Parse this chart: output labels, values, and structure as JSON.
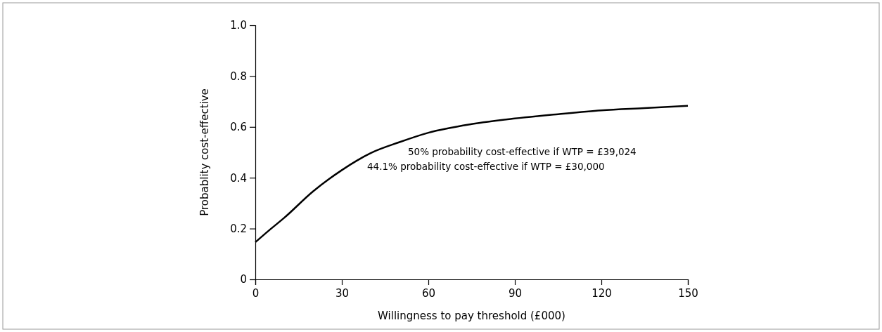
{
  "chart_data": {
    "type": "line",
    "xlabel": "Willingness to pay threshold (£000)",
    "ylabel": "Probablity cost-effective",
    "x": [
      0,
      5,
      10,
      20,
      30,
      40,
      50,
      60,
      75,
      90,
      105,
      120,
      135,
      150
    ],
    "series": [
      {
        "color": "#000000",
        "values": [
          0.146,
          0.195,
          0.242,
          0.346,
          0.43,
          0.497,
          0.54,
          0.577,
          0.611,
          0.633,
          0.65,
          0.665,
          0.674,
          0.683
        ]
      }
    ],
    "xlim": [
      0,
      150
    ],
    "xticks": [
      0,
      30,
      60,
      90,
      120,
      150
    ],
    "ylim": [
      0,
      1.0
    ],
    "yticks": [
      0,
      0.2,
      0.4,
      0.6,
      0.8,
      {
        "value": 1.0,
        "label": "1.0"
      }
    ],
    "annotations": [
      "50% probability cost-effective if WTP = £39,024",
      "44.1% probability cost-effective if WTP = £30,000"
    ],
    "grid": false,
    "marker": "none",
    "line_style": "solid"
  }
}
